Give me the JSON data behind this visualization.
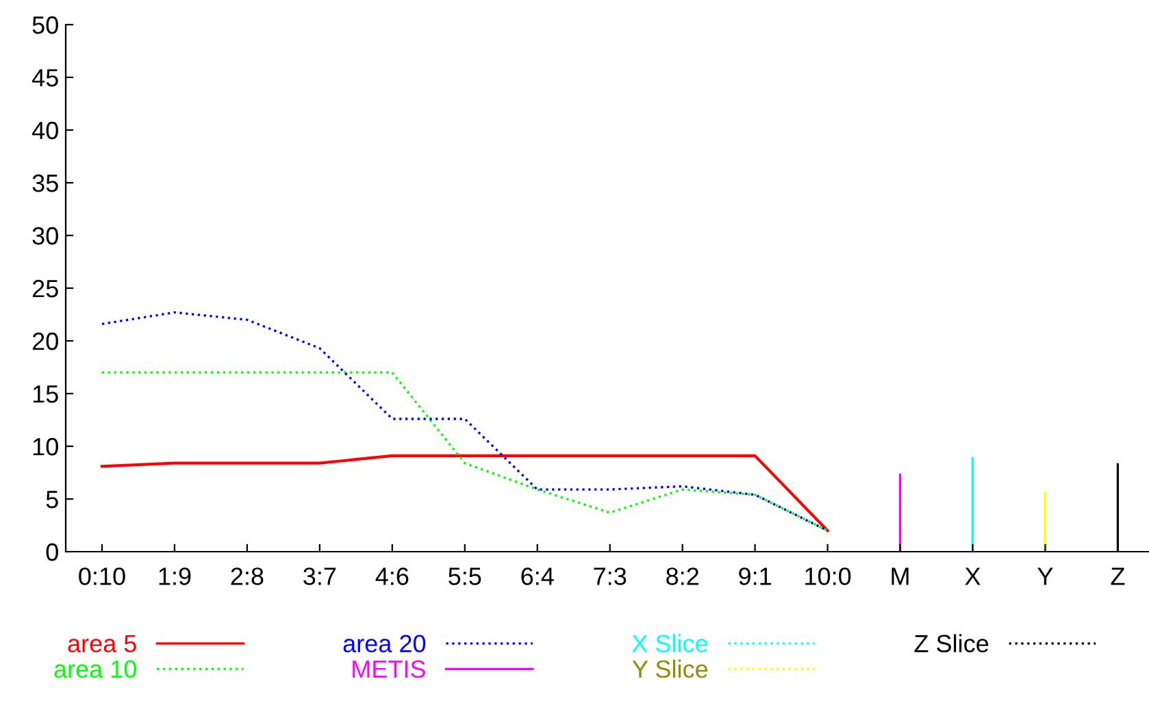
{
  "chart_data": {
    "type": "line",
    "categories": [
      "0:10",
      "1:9",
      "2:8",
      "3:7",
      "4:6",
      "5:5",
      "6:4",
      "7:3",
      "8:2",
      "9:1",
      "10:0",
      "M",
      "X",
      "Y",
      "Z"
    ],
    "ylim": [
      0,
      50
    ],
    "yticks": [
      0,
      5,
      10,
      15,
      20,
      25,
      30,
      35,
      40,
      45,
      50
    ],
    "grid": false,
    "legend": "bottom",
    "marker": "none",
    "series": [
      {
        "name": "area 5",
        "color": "#ff0000",
        "line_style": "solid",
        "values": [
          8.1,
          8.4,
          8.4,
          8.4,
          9.1,
          9.1,
          9.1,
          9.1,
          9.1,
          9.1,
          2,
          null,
          null,
          null,
          null
        ]
      },
      {
        "name": "area 10",
        "color": "#00ff00",
        "line_style": "dotted",
        "values": [
          17,
          17,
          17,
          17,
          17,
          8.4,
          5.9,
          3.7,
          5.9,
          5.4,
          2,
          null,
          null,
          null,
          null
        ]
      },
      {
        "name": "area 20",
        "color": "#0000ff",
        "line_style": "dotted",
        "values": [
          21.6,
          22.7,
          22.0,
          19.3,
          12.6,
          12.6,
          5.9,
          5.9,
          6.2,
          5.4,
          2,
          null,
          null,
          null,
          null
        ]
      },
      {
        "name": "METIS",
        "color": "#ff00ff",
        "type": "bar",
        "line_style": "solid",
        "values": [
          null,
          null,
          null,
          null,
          null,
          null,
          null,
          null,
          null,
          null,
          null,
          7.4,
          null,
          null,
          null
        ]
      },
      {
        "name": "X Slice",
        "color": "#00ffff",
        "type": "bar",
        "line_style": "dotted",
        "values": [
          null,
          null,
          null,
          null,
          null,
          null,
          null,
          null,
          null,
          null,
          null,
          null,
          9.0,
          null,
          null
        ]
      },
      {
        "name": "Y Slice",
        "color": "#ffff00",
        "type": "bar",
        "line_style": "dotted",
        "values": [
          null,
          null,
          null,
          null,
          null,
          null,
          null,
          null,
          null,
          null,
          null,
          null,
          null,
          5.7,
          null
        ]
      },
      {
        "name": "Z Slice",
        "color": "#000000",
        "type": "bar",
        "line_style": "dotted",
        "values": [
          null,
          null,
          null,
          null,
          null,
          null,
          null,
          null,
          null,
          null,
          null,
          null,
          null,
          null,
          8.4
        ]
      }
    ]
  }
}
